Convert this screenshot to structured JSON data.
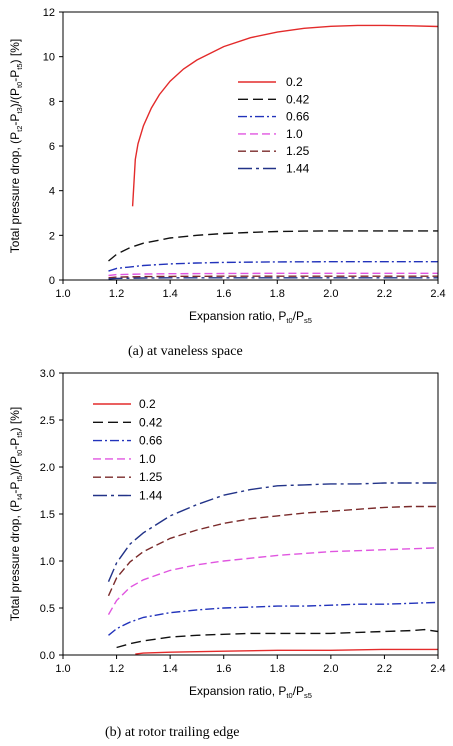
{
  "chart_data": [
    {
      "type": "line",
      "caption": "(a)  at  vaneless  space",
      "xlabel": {
        "main": "Expansion ratio, P",
        "sub1": "t0",
        "mid": "/P",
        "sub2": "s5"
      },
      "ylabel": {
        "parts": [
          {
            "t": "Total pressure drop, (P"
          },
          {
            "t": "t2",
            "sub": true
          },
          {
            "t": "-P"
          },
          {
            "t": "t3",
            "sub": true
          },
          {
            "t": ")/(P"
          },
          {
            "t": "t0",
            "sub": true
          },
          {
            "t": "-P"
          },
          {
            "t": "t5",
            "sub": true
          },
          {
            "t": ") [%]"
          }
        ]
      },
      "xlim": [
        1.0,
        2.4
      ],
      "ylim": [
        0,
        12
      ],
      "xticks": [
        "1.0",
        "1.2",
        "1.4",
        "1.6",
        "1.8",
        "2.0",
        "2.2",
        "2.4"
      ],
      "yticks": [
        "0",
        "2",
        "4",
        "6",
        "8",
        "10",
        "12"
      ],
      "legend_position": "center-right",
      "series": [
        {
          "name": "0.2",
          "color": "#e32b2b",
          "dash": "",
          "x": [
            1.26,
            1.27,
            1.28,
            1.3,
            1.33,
            1.36,
            1.4,
            1.45,
            1.5,
            1.6,
            1.7,
            1.8,
            1.9,
            2.0,
            2.1,
            2.2,
            2.3,
            2.4
          ],
          "y": [
            3.3,
            5.4,
            6.1,
            6.9,
            7.7,
            8.3,
            8.9,
            9.45,
            9.85,
            10.45,
            10.85,
            11.1,
            11.27,
            11.36,
            11.4,
            11.4,
            11.38,
            11.35
          ]
        },
        {
          "name": "0.42",
          "color": "#111111",
          "dash": "10,5",
          "x": [
            1.17,
            1.2,
            1.25,
            1.3,
            1.4,
            1.5,
            1.6,
            1.7,
            1.8,
            1.9,
            2.0,
            2.1,
            2.2,
            2.3,
            2.4
          ],
          "y": [
            0.85,
            1.15,
            1.45,
            1.65,
            1.88,
            2.0,
            2.08,
            2.13,
            2.17,
            2.19,
            2.2,
            2.2,
            2.2,
            2.2,
            2.2
          ]
        },
        {
          "name": "0.66",
          "color": "#2233bb",
          "dash": "9,3,2,3",
          "x": [
            1.17,
            1.2,
            1.3,
            1.4,
            1.5,
            1.6,
            1.8,
            2.0,
            2.2,
            2.4
          ],
          "y": [
            0.4,
            0.52,
            0.65,
            0.72,
            0.76,
            0.79,
            0.81,
            0.82,
            0.82,
            0.82
          ]
        },
        {
          "name": "1.0",
          "color": "#e055e0",
          "dash": "8,4",
          "x": [
            1.17,
            1.2,
            1.3,
            1.4,
            1.6,
            1.8,
            2.0,
            2.2,
            2.4
          ],
          "y": [
            0.2,
            0.24,
            0.27,
            0.28,
            0.29,
            0.3,
            0.3,
            0.3,
            0.3
          ]
        },
        {
          "name": "1.25",
          "color": "#7a2a2a",
          "dash": "8,4",
          "x": [
            1.17,
            1.2,
            1.3,
            1.4,
            1.6,
            1.8,
            2.0,
            2.2,
            2.4
          ],
          "y": [
            0.1,
            0.13,
            0.15,
            0.16,
            0.17,
            0.17,
            0.17,
            0.17,
            0.17
          ]
        },
        {
          "name": "1.44",
          "color": "#223388",
          "dash": "14,4,3,4",
          "x": [
            1.17,
            1.2,
            1.3,
            1.4,
            1.6,
            1.8,
            2.0,
            2.2,
            2.4
          ],
          "y": [
            0.05,
            0.07,
            0.09,
            0.1,
            0.1,
            0.1,
            0.1,
            0.1,
            0.1
          ]
        }
      ]
    },
    {
      "type": "line",
      "caption": "(b)  at  rotor  trailing  edge",
      "xlabel": {
        "main": "Expansion ratio, P",
        "sub1": "t0",
        "mid": "/P",
        "sub2": "s5"
      },
      "ylabel": {
        "parts": [
          {
            "t": "Total pressure drop, (P"
          },
          {
            "t": "t4",
            "sub": true
          },
          {
            "t": "-P"
          },
          {
            "t": "t5",
            "sub": true
          },
          {
            "t": ")/(P"
          },
          {
            "t": "t0",
            "sub": true
          },
          {
            "t": "-P"
          },
          {
            "t": "t5",
            "sub": true
          },
          {
            "t": ") [%]"
          }
        ]
      },
      "xlim": [
        1.0,
        2.4
      ],
      "ylim": [
        0,
        3.0
      ],
      "xticks": [
        "1.0",
        "1.2",
        "1.4",
        "1.6",
        "1.8",
        "2.0",
        "2.2",
        "2.4"
      ],
      "yticks": [
        "0.0",
        "0.5",
        "1.0",
        "1.5",
        "2.0",
        "2.5",
        "3.0"
      ],
      "legend_position": "top-left",
      "series": [
        {
          "name": "0.2",
          "color": "#e32b2b",
          "dash": "",
          "x": [
            1.27,
            1.3,
            1.4,
            1.6,
            1.8,
            2.0,
            2.2,
            2.4
          ],
          "y": [
            0.01,
            0.02,
            0.03,
            0.04,
            0.05,
            0.05,
            0.06,
            0.06
          ]
        },
        {
          "name": "0.42",
          "color": "#111111",
          "dash": "10,5",
          "x": [
            1.2,
            1.25,
            1.3,
            1.4,
            1.5,
            1.6,
            1.7,
            1.8,
            1.9,
            2.0,
            2.1,
            2.2,
            2.3,
            2.35,
            2.4
          ],
          "y": [
            0.08,
            0.12,
            0.15,
            0.19,
            0.21,
            0.22,
            0.23,
            0.23,
            0.23,
            0.23,
            0.24,
            0.25,
            0.26,
            0.27,
            0.25
          ]
        },
        {
          "name": "0.66",
          "color": "#2233bb",
          "dash": "9,3,2,3",
          "x": [
            1.17,
            1.2,
            1.25,
            1.3,
            1.4,
            1.5,
            1.6,
            1.7,
            1.8,
            1.9,
            2.0,
            2.1,
            2.2,
            2.3,
            2.4
          ],
          "y": [
            0.21,
            0.28,
            0.35,
            0.4,
            0.45,
            0.48,
            0.5,
            0.51,
            0.52,
            0.52,
            0.53,
            0.54,
            0.54,
            0.55,
            0.56
          ]
        },
        {
          "name": "1.0",
          "color": "#e055e0",
          "dash": "8,4",
          "x": [
            1.17,
            1.2,
            1.25,
            1.3,
            1.4,
            1.5,
            1.6,
            1.7,
            1.8,
            1.9,
            2.0,
            2.1,
            2.2,
            2.3,
            2.4
          ],
          "y": [
            0.43,
            0.58,
            0.72,
            0.8,
            0.9,
            0.96,
            1.0,
            1.03,
            1.06,
            1.08,
            1.1,
            1.11,
            1.12,
            1.13,
            1.14
          ]
        },
        {
          "name": "1.25",
          "color": "#7a2a2a",
          "dash": "8,4",
          "x": [
            1.17,
            1.2,
            1.25,
            1.3,
            1.4,
            1.5,
            1.6,
            1.7,
            1.8,
            1.9,
            2.0,
            2.1,
            2.2,
            2.3,
            2.4
          ],
          "y": [
            0.63,
            0.82,
            0.99,
            1.1,
            1.24,
            1.33,
            1.4,
            1.45,
            1.48,
            1.51,
            1.53,
            1.55,
            1.57,
            1.58,
            1.58
          ]
        },
        {
          "name": "1.44",
          "color": "#223388",
          "dash": "14,4,3,4",
          "x": [
            1.17,
            1.2,
            1.25,
            1.3,
            1.4,
            1.5,
            1.6,
            1.7,
            1.8,
            1.9,
            2.0,
            2.1,
            2.2,
            2.3,
            2.4
          ],
          "y": [
            0.78,
            0.98,
            1.18,
            1.3,
            1.48,
            1.6,
            1.7,
            1.76,
            1.8,
            1.81,
            1.82,
            1.82,
            1.83,
            1.83,
            1.83
          ]
        }
      ]
    }
  ]
}
